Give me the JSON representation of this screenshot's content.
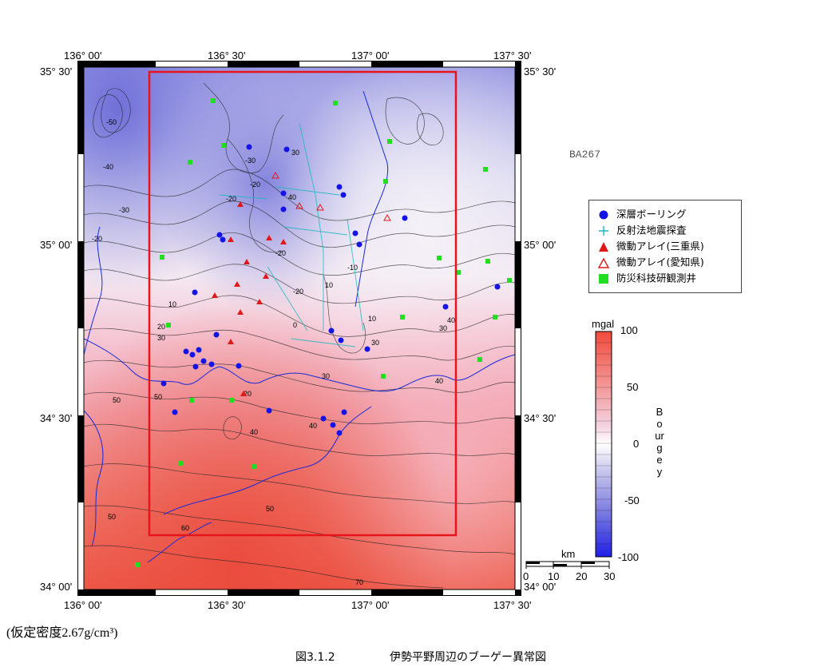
{
  "map": {
    "code": "BA267",
    "lon_labels": [
      "136° 00'",
      "136° 30'",
      "137° 00'",
      "137° 30'"
    ],
    "lat_labels_top": [
      "35° 30'",
      "35° 30'"
    ],
    "lat_labels_mid": [
      "35° 00'",
      "35° 00'"
    ],
    "lat_labels_low": [
      "34° 30'",
      "34° 30'"
    ],
    "lat_labels_bottom": [
      "34° 00'",
      "34° 00'"
    ],
    "contour_labels": [
      "-50",
      "-40",
      "-30",
      "-20",
      "-30",
      "-20",
      "30",
      "-20",
      "40",
      "-20",
      "10",
      "0",
      "10",
      "20",
      "30",
      "-10",
      "-20",
      "20",
      "30",
      "10",
      "30",
      "40",
      "50",
      "40",
      "50",
      "40",
      "50",
      "60",
      "70",
      "30",
      "50",
      "40"
    ],
    "highlight_box_color": "#e8141c"
  },
  "legend": {
    "items": [
      {
        "label": "深層ボーリング",
        "symbol": "blue-circle-icon",
        "color": "#1414e6"
      },
      {
        "label": "反射法地震探査",
        "symbol": "cyan-plus-icon",
        "color": "#1ab8c0"
      },
      {
        "label": "微動アレイ(三重県)",
        "symbol": "red-filled-triangle-icon",
        "color": "#e01818"
      },
      {
        "label": "微動アレイ(愛知県)",
        "symbol": "red-open-triangle-icon",
        "color": "#e01818"
      },
      {
        "label": "防災科技研観測井",
        "symbol": "green-square-icon",
        "color": "#22dd22"
      }
    ]
  },
  "colorbar": {
    "unit": "mgal",
    "ticks": [
      "100",
      "50",
      "0",
      "-50",
      "-100"
    ],
    "title": "Bourgey",
    "colors": [
      "#f24a3c",
      "#ffffff",
      "#1f1fe6"
    ]
  },
  "scale_bar": {
    "unit": "km",
    "ticks": [
      "0",
      "10",
      "20",
      "30"
    ]
  },
  "footnote": "(仮定密度2.67g/cm³)",
  "caption": {
    "figure_no": "図3.1.2",
    "title": "伊勢平野周辺のブーゲー異常図"
  }
}
